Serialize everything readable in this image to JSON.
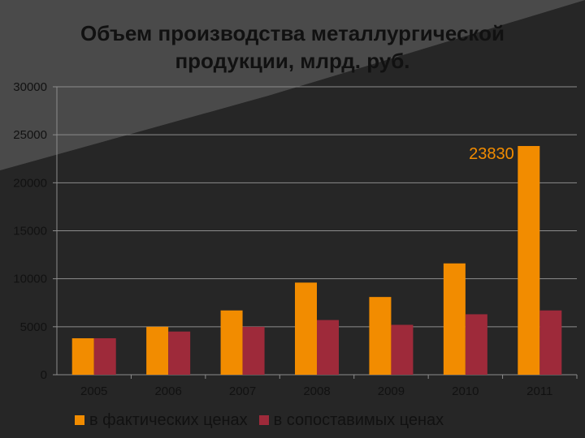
{
  "chart_data": {
    "type": "bar",
    "title_line1": "Объем производства металлургической",
    "title_line2": "продукции, млрд. руб.",
    "categories": [
      "2005",
      "2006",
      "2007",
      "2008",
      "2009",
      "2010",
      "2011"
    ],
    "series": [
      {
        "name": "в фактических ценах",
        "color": "#F28C00",
        "values": [
          3800,
          5000,
          6700,
          9600,
          8100,
          11600,
          23830
        ]
      },
      {
        "name": "в сопоставимых ценах",
        "color": "#9E2A3A",
        "values": [
          3800,
          4500,
          5000,
          5700,
          5200,
          6300,
          6700
        ]
      }
    ],
    "annotation": {
      "text": "23830",
      "category": "2011",
      "series": 0,
      "color": "#F28C00"
    },
    "y_ticks": [
      "0",
      "5000",
      "10000",
      "15000",
      "20000",
      "25000",
      "30000"
    ],
    "ylim": [
      0,
      30000
    ],
    "xlabel": "",
    "ylabel": "",
    "legend_position": "bottom"
  }
}
